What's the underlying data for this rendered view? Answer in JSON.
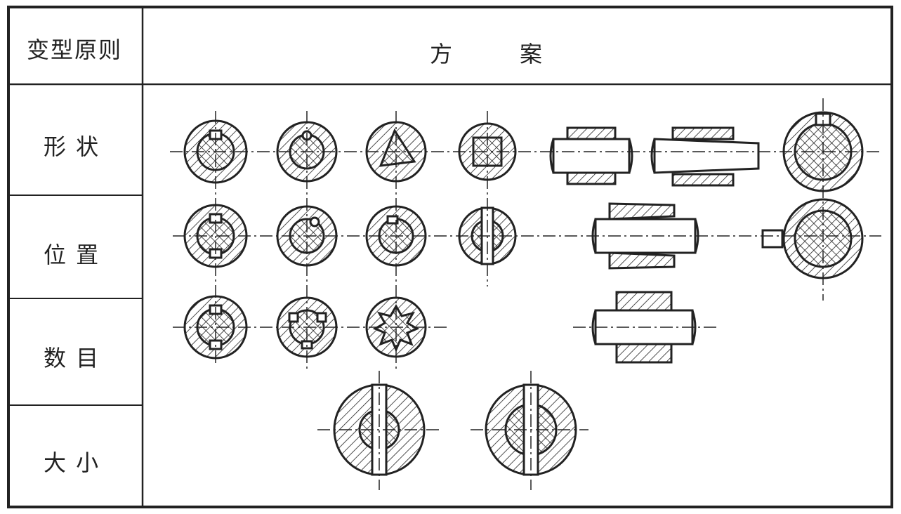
{
  "table": {
    "header_left": "变型原则",
    "header_right_1": "方",
    "header_right_2": "案",
    "rows": [
      {
        "label": "形 状"
      },
      {
        "label": "位 置"
      },
      {
        "label": "数 目"
      },
      {
        "label": "大 小"
      }
    ]
  }
}
